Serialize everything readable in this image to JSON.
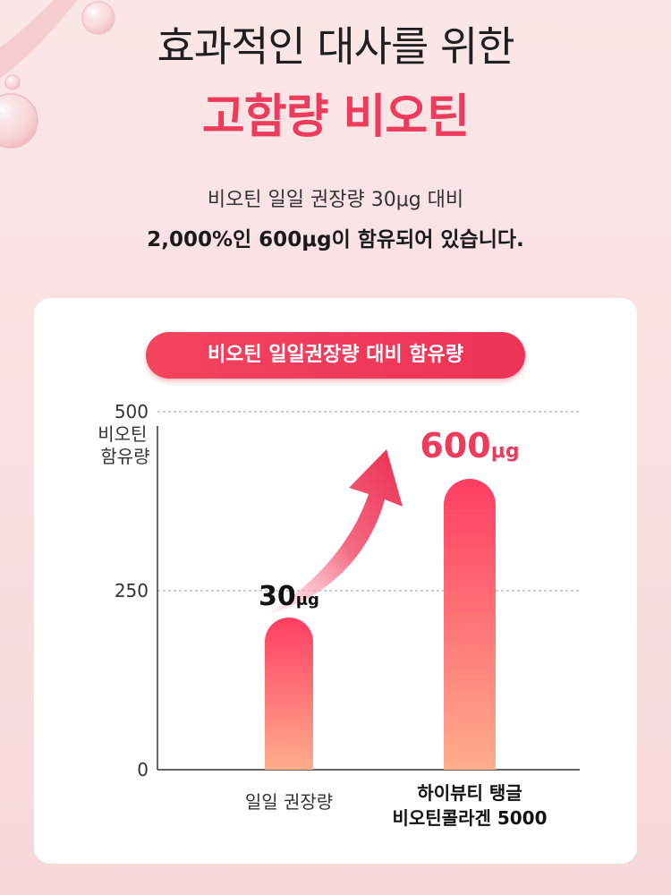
{
  "header": {
    "headline": "효과적인 대사를 위한",
    "headline_strong": "고함량 비오틴",
    "desc1": "비오틴 일일 권장량 30μg 대비",
    "desc2": "2,000%인 600μg이 함유되어 있습니다."
  },
  "card": {
    "pill_label": "비오틴 일일권장량 대비 함유량"
  },
  "colors": {
    "accent": "#ec3b5c",
    "bar_top": "#ff3e63",
    "bar_bottom": "#ffad8c",
    "grid": "#9a9a9a"
  },
  "chart_data": {
    "type": "bar",
    "ylabel_lines": [
      "비오틴",
      "함유량"
    ],
    "yticks": [
      0,
      250,
      500
    ],
    "ylim": [
      0,
      600
    ],
    "grid": "dashed at 250 and 500",
    "categories": [
      {
        "lines": [
          "일일 권장량"
        ],
        "bold": false
      },
      {
        "lines": [
          "하이뷰티 탱글",
          "비오틴콜라겐 5000"
        ],
        "bold": true
      }
    ],
    "values": [
      30,
      600
    ],
    "value_labels": [
      {
        "num": "30",
        "unit": "μg"
      },
      {
        "num": "600",
        "unit": "μg"
      }
    ],
    "display_heights": [
      170,
      325
    ],
    "annotation": "rising-arrow-icon"
  }
}
